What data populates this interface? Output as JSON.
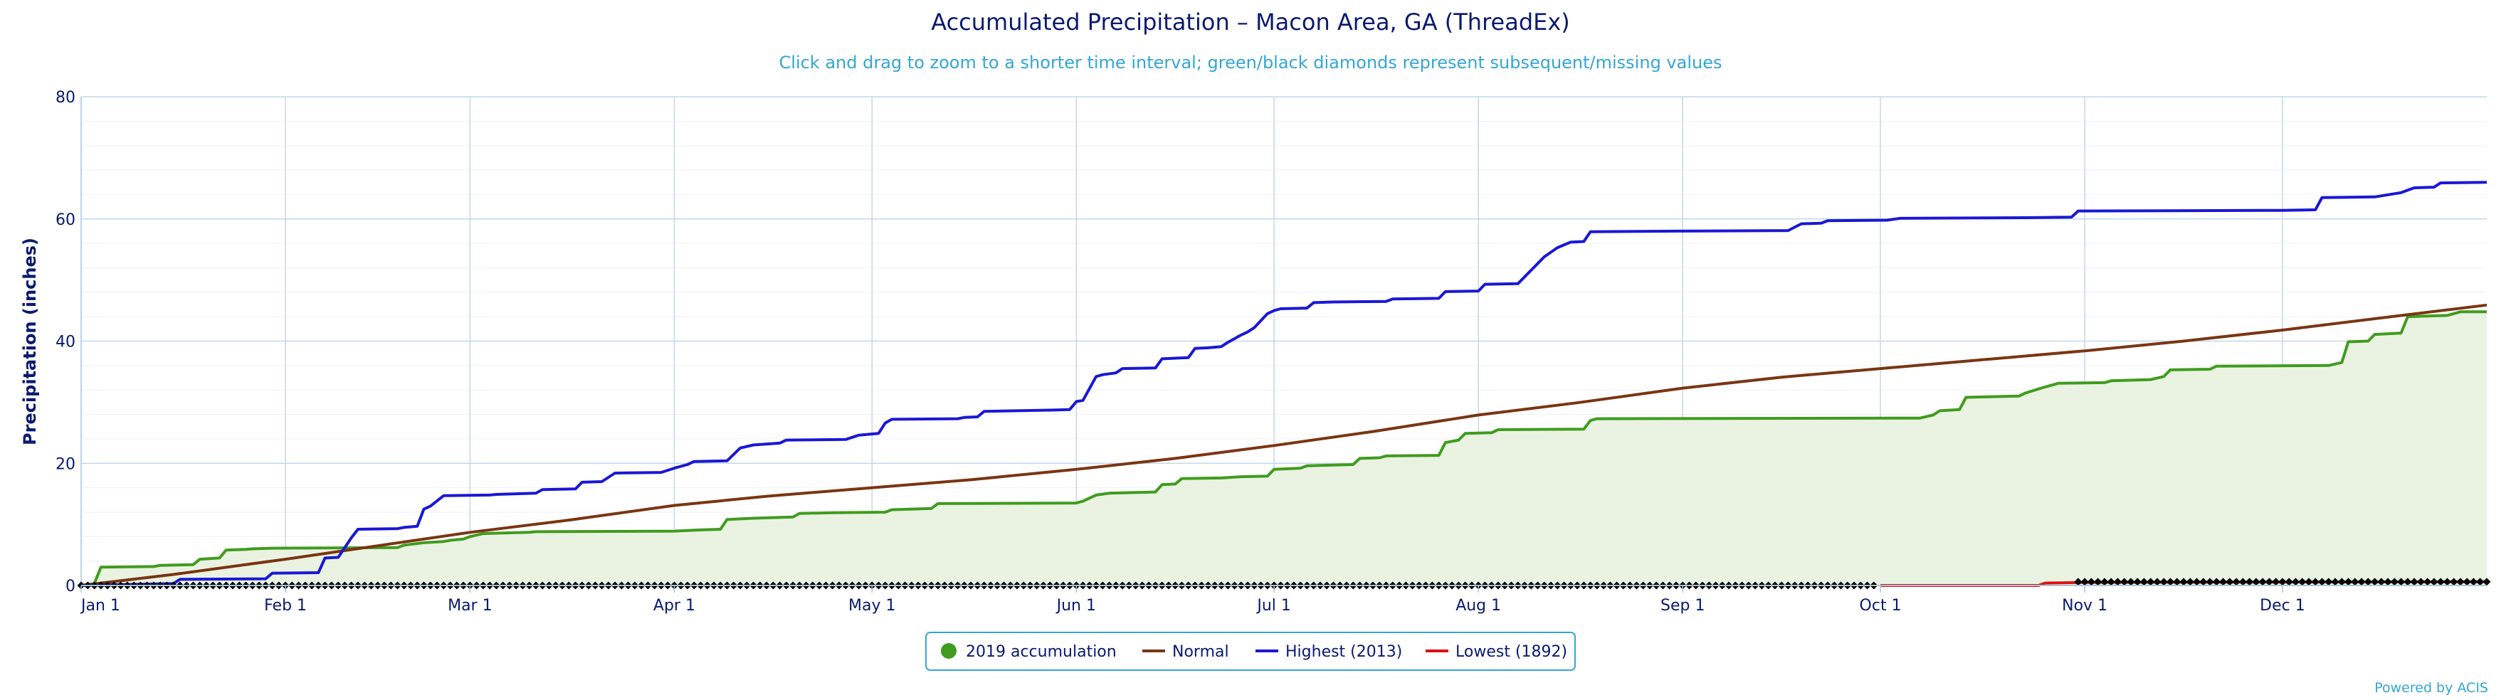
{
  "chart_data": {
    "type": "area",
    "title": "Accumulated Precipitation – Macon Area, GA (ThreadEx)",
    "subtitle": "Click and drag to zoom to a shorter time interval; green/black diamonds represent subsequent/missing values",
    "ylabel": "Precipitation (inches)",
    "ylim": [
      0,
      80
    ],
    "yticks": [
      0,
      20,
      40,
      60,
      80
    ],
    "xlim": [
      1,
      366
    ],
    "xticks": [
      {
        "day": 1,
        "label": "Jan 1"
      },
      {
        "day": 32,
        "label": "Feb 1"
      },
      {
        "day": 60,
        "label": "Mar 1"
      },
      {
        "day": 91,
        "label": "Apr 1"
      },
      {
        "day": 121,
        "label": "May 1"
      },
      {
        "day": 152,
        "label": "Jun 1"
      },
      {
        "day": 182,
        "label": "Jul 1"
      },
      {
        "day": 213,
        "label": "Aug 1"
      },
      {
        "day": 244,
        "label": "Sep 1"
      },
      {
        "day": 274,
        "label": "Oct 1"
      },
      {
        "day": 305,
        "label": "Nov 1"
      },
      {
        "day": 335,
        "label": "Dec 1"
      }
    ],
    "legend_position": "bottom-center",
    "grid": true,
    "series": [
      {
        "name": "2019 accumulation",
        "color": "#3f9c1e",
        "fill": "#eaf3e2",
        "points": [
          [
            1,
            0
          ],
          [
            3,
            0.3
          ],
          [
            4,
            3
          ],
          [
            12,
            3.1
          ],
          [
            13,
            3.3
          ],
          [
            18,
            3.4
          ],
          [
            19,
            4.3
          ],
          [
            22,
            4.5
          ],
          [
            23,
            5.8
          ],
          [
            26,
            5.9
          ],
          [
            27,
            6
          ],
          [
            30,
            6.1
          ],
          [
            49,
            6.2
          ],
          [
            50,
            6.6
          ],
          [
            53,
            7
          ],
          [
            56,
            7.2
          ],
          [
            57,
            7.4
          ],
          [
            59,
            7.6
          ],
          [
            60,
            8
          ],
          [
            62,
            8.5
          ],
          [
            69,
            8.7
          ],
          [
            70,
            8.8
          ],
          [
            91,
            8.9
          ],
          [
            95,
            9.1
          ],
          [
            98,
            9.2
          ],
          [
            99,
            10.8
          ],
          [
            103,
            11
          ],
          [
            109,
            11.2
          ],
          [
            110,
            11.8
          ],
          [
            115,
            11.9
          ],
          [
            123,
            12
          ],
          [
            124,
            12.4
          ],
          [
            130,
            12.6
          ],
          [
            131,
            13.4
          ],
          [
            152,
            13.5
          ],
          [
            153,
            13.8
          ],
          [
            155,
            14.8
          ],
          [
            157,
            15.1
          ],
          [
            164,
            15.3
          ],
          [
            165,
            16.5
          ],
          [
            167,
            16.6
          ],
          [
            168,
            17.5
          ],
          [
            174,
            17.6
          ],
          [
            177,
            17.8
          ],
          [
            181,
            17.9
          ],
          [
            182,
            19
          ],
          [
            186,
            19.2
          ],
          [
            187,
            19.6
          ],
          [
            194,
            19.8
          ],
          [
            195,
            20.8
          ],
          [
            198,
            20.9
          ],
          [
            199,
            21.2
          ],
          [
            207,
            21.3
          ],
          [
            208,
            23.4
          ],
          [
            210,
            23.8
          ],
          [
            211,
            24.9
          ],
          [
            215,
            25
          ],
          [
            216,
            25.5
          ],
          [
            229,
            25.6
          ],
          [
            230,
            27
          ],
          [
            231,
            27.3
          ],
          [
            280,
            27.4
          ],
          [
            282,
            27.9
          ],
          [
            283,
            28.6
          ],
          [
            286,
            28.8
          ],
          [
            287,
            30.8
          ],
          [
            295,
            31
          ],
          [
            296,
            31.5
          ],
          [
            299,
            32.5
          ],
          [
            301,
            33.1
          ],
          [
            308,
            33.2
          ],
          [
            309,
            33.5
          ],
          [
            315,
            33.7
          ],
          [
            317,
            34.2
          ],
          [
            318,
            35.3
          ],
          [
            324,
            35.4
          ],
          [
            325,
            35.9
          ],
          [
            342,
            36
          ],
          [
            344,
            36.5
          ],
          [
            345,
            39.9
          ],
          [
            348,
            40
          ],
          [
            349,
            41.1
          ],
          [
            353,
            41.3
          ],
          [
            354,
            44
          ],
          [
            360,
            44.2
          ],
          [
            362,
            44.8
          ],
          [
            366,
            44.8
          ]
        ]
      },
      {
        "name": "Normal",
        "color": "#7a3512",
        "points": [
          [
            1,
            0
          ],
          [
            15,
            1.8
          ],
          [
            32,
            4.3
          ],
          [
            46,
            6.5
          ],
          [
            60,
            8.7
          ],
          [
            75,
            10.7
          ],
          [
            91,
            13.1
          ],
          [
            105,
            14.6
          ],
          [
            121,
            16
          ],
          [
            136,
            17.3
          ],
          [
            152,
            19
          ],
          [
            167,
            20.8
          ],
          [
            182,
            22.9
          ],
          [
            197,
            25.2
          ],
          [
            213,
            27.9
          ],
          [
            228,
            29.9
          ],
          [
            244,
            32.3
          ],
          [
            259,
            34.1
          ],
          [
            274,
            35.5
          ],
          [
            290,
            37
          ],
          [
            305,
            38.4
          ],
          [
            320,
            40
          ],
          [
            335,
            41.8
          ],
          [
            350,
            43.8
          ],
          [
            366,
            45.9
          ]
        ]
      },
      {
        "name": "Highest (2013)",
        "color": "#1a17d6",
        "points": [
          [
            1,
            0
          ],
          [
            15,
            0.3
          ],
          [
            16,
            1
          ],
          [
            29,
            1.1
          ],
          [
            30,
            2
          ],
          [
            37,
            2.1
          ],
          [
            38,
            4.5
          ],
          [
            40,
            4.6
          ],
          [
            42,
            7.8
          ],
          [
            43,
            9.2
          ],
          [
            49,
            9.3
          ],
          [
            50,
            9.5
          ],
          [
            52,
            9.7
          ],
          [
            53,
            12.5
          ],
          [
            54,
            13
          ],
          [
            56,
            14.7
          ],
          [
            63,
            14.8
          ],
          [
            64,
            14.9
          ],
          [
            70,
            15.1
          ],
          [
            71,
            15.7
          ],
          [
            76,
            15.8
          ],
          [
            77,
            16.9
          ],
          [
            80,
            17
          ],
          [
            82,
            18.4
          ],
          [
            89,
            18.5
          ],
          [
            91,
            19.2
          ],
          [
            93,
            19.8
          ],
          [
            94,
            20.3
          ],
          [
            99,
            20.4
          ],
          [
            101,
            22.5
          ],
          [
            103,
            23
          ],
          [
            107,
            23.3
          ],
          [
            108,
            23.8
          ],
          [
            117,
            23.9
          ],
          [
            119,
            24.6
          ],
          [
            122,
            24.9
          ],
          [
            123,
            26.6
          ],
          [
            124,
            27.2
          ],
          [
            134,
            27.3
          ],
          [
            135,
            27.5
          ],
          [
            137,
            27.6
          ],
          [
            138,
            28.5
          ],
          [
            148,
            28.7
          ],
          [
            151,
            28.8
          ],
          [
            152,
            30.1
          ],
          [
            153,
            30.3
          ],
          [
            155,
            34.2
          ],
          [
            156,
            34.5
          ],
          [
            158,
            34.8
          ],
          [
            159,
            35.5
          ],
          [
            164,
            35.6
          ],
          [
            165,
            37.1
          ],
          [
            169,
            37.3
          ],
          [
            170,
            38.8
          ],
          [
            172,
            38.9
          ],
          [
            174,
            39.1
          ],
          [
            175,
            39.8
          ],
          [
            177,
            41
          ],
          [
            178,
            41.5
          ],
          [
            179,
            42.2
          ],
          [
            181,
            44.5
          ],
          [
            182,
            45
          ],
          [
            183,
            45.3
          ],
          [
            187,
            45.4
          ],
          [
            188,
            46.3
          ],
          [
            191,
            46.4
          ],
          [
            199,
            46.5
          ],
          [
            200,
            46.9
          ],
          [
            207,
            47
          ],
          [
            208,
            48.1
          ],
          [
            213,
            48.2
          ],
          [
            214,
            49.3
          ],
          [
            219,
            49.4
          ],
          [
            220,
            50.5
          ],
          [
            223,
            53.8
          ],
          [
            225,
            55.3
          ],
          [
            227,
            56.2
          ],
          [
            229,
            56.3
          ],
          [
            230,
            57.9
          ],
          [
            243,
            58
          ],
          [
            260,
            58.1
          ],
          [
            262,
            59.2
          ],
          [
            265,
            59.3
          ],
          [
            266,
            59.7
          ],
          [
            275,
            59.8
          ],
          [
            277,
            60.1
          ],
          [
            296,
            60.2
          ],
          [
            303,
            60.3
          ],
          [
            304,
            61.3
          ],
          [
            335,
            61.4
          ],
          [
            340,
            61.5
          ],
          [
            341,
            63.5
          ],
          [
            349,
            63.6
          ],
          [
            353,
            64.3
          ],
          [
            355,
            65.1
          ],
          [
            358,
            65.2
          ],
          [
            359,
            65.9
          ],
          [
            366,
            66
          ]
        ]
      },
      {
        "name": "Lowest (1892)",
        "color": "#e01010",
        "points": [
          [
            274,
            0
          ],
          [
            298,
            0
          ],
          [
            299,
            0.4
          ],
          [
            305,
            0.5
          ],
          [
            366,
            0.6
          ]
        ]
      }
    ],
    "diamond_markers": {
      "color": "#000000",
      "ranges": [
        [
          1,
          273,
          0
        ],
        [
          304,
          366,
          0.6
        ]
      ]
    },
    "credit": "Powered by ACIS"
  }
}
